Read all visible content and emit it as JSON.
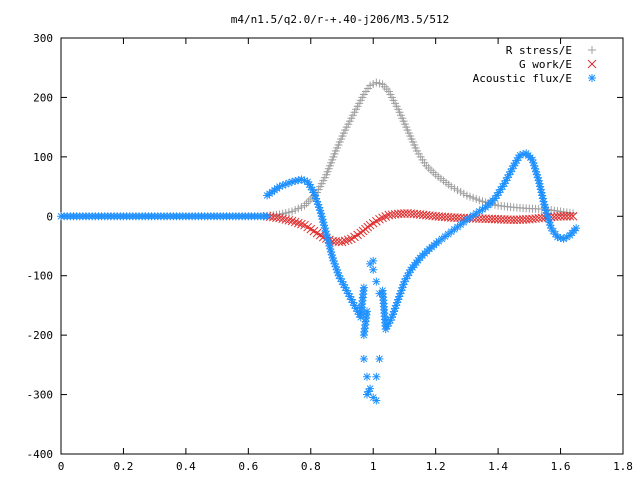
{
  "chart_data": {
    "type": "scatter",
    "title": "m4/n1.5/q2.0/r-+.40-j206/M3.5/512",
    "xlabel": "",
    "ylabel": "",
    "xlim": [
      0,
      1.8
    ],
    "ylim": [
      -400,
      300
    ],
    "xticks": [
      "0",
      "0.2",
      "0.4",
      "0.6",
      "0.8",
      "1",
      "1.2",
      "1.4",
      "1.6",
      "1.8"
    ],
    "yticks": [
      "300",
      "200",
      "100",
      "0",
      "-100",
      "-200",
      "-300",
      "-400"
    ],
    "grid": false,
    "legend_position": "top-right",
    "series": [
      {
        "name": "R stress/E",
        "marker": "+",
        "color": "#a0a0a0",
        "points": [
          [
            0.66,
            1
          ],
          [
            0.7,
            3
          ],
          [
            0.74,
            8
          ],
          [
            0.78,
            18
          ],
          [
            0.82,
            40
          ],
          [
            0.85,
            70
          ],
          [
            0.88,
            110
          ],
          [
            0.91,
            145
          ],
          [
            0.94,
            175
          ],
          [
            0.97,
            205
          ],
          [
            0.99,
            220
          ],
          [
            1.01,
            225
          ],
          [
            1.03,
            222
          ],
          [
            1.05,
            210
          ],
          [
            1.08,
            180
          ],
          [
            1.11,
            145
          ],
          [
            1.14,
            110
          ],
          [
            1.17,
            85
          ],
          [
            1.2,
            70
          ],
          [
            1.25,
            50
          ],
          [
            1.3,
            35
          ],
          [
            1.35,
            25
          ],
          [
            1.4,
            18
          ],
          [
            1.45,
            15
          ],
          [
            1.5,
            13
          ],
          [
            1.55,
            12
          ],
          [
            1.6,
            8
          ],
          [
            1.64,
            5
          ]
        ]
      },
      {
        "name": "G work/E",
        "marker": "x",
        "color": "#e03030",
        "points": [
          [
            0.66,
            0
          ],
          [
            0.7,
            -3
          ],
          [
            0.74,
            -8
          ],
          [
            0.78,
            -15
          ],
          [
            0.81,
            -25
          ],
          [
            0.84,
            -35
          ],
          [
            0.87,
            -42
          ],
          [
            0.9,
            -43
          ],
          [
            0.93,
            -38
          ],
          [
            0.96,
            -28
          ],
          [
            0.99,
            -15
          ],
          [
            1.02,
            -5
          ],
          [
            1.05,
            2
          ],
          [
            1.08,
            4
          ],
          [
            1.11,
            5
          ],
          [
            1.15,
            3
          ],
          [
            1.2,
            0
          ],
          [
            1.25,
            -2
          ],
          [
            1.3,
            -3
          ],
          [
            1.35,
            -4
          ],
          [
            1.4,
            -5
          ],
          [
            1.45,
            -6
          ],
          [
            1.5,
            -5
          ],
          [
            1.55,
            -2
          ],
          [
            1.6,
            0
          ],
          [
            1.64,
            0
          ]
        ]
      },
      {
        "name": "Acoustic flux/E",
        "marker": "*",
        "color": "#1e90ff",
        "points": [
          [
            0.0,
            0
          ],
          [
            0.05,
            0
          ],
          [
            0.1,
            0
          ],
          [
            0.15,
            0
          ],
          [
            0.2,
            0
          ],
          [
            0.25,
            0
          ],
          [
            0.3,
            0
          ],
          [
            0.35,
            0
          ],
          [
            0.4,
            0
          ],
          [
            0.45,
            0
          ],
          [
            0.5,
            0
          ],
          [
            0.55,
            0
          ],
          [
            0.6,
            0
          ],
          [
            0.64,
            0
          ],
          [
            0.66,
            0
          ],
          [
            0.66,
            35
          ],
          [
            0.7,
            50
          ],
          [
            0.74,
            58
          ],
          [
            0.77,
            62
          ],
          [
            0.79,
            58
          ],
          [
            0.81,
            40
          ],
          [
            0.83,
            10
          ],
          [
            0.85,
            -30
          ],
          [
            0.87,
            -70
          ],
          [
            0.89,
            -100
          ],
          [
            0.91,
            -120
          ],
          [
            0.93,
            -140
          ],
          [
            0.95,
            -160
          ],
          [
            0.96,
            -170
          ],
          [
            0.97,
            -120
          ],
          [
            0.97,
            -240
          ],
          [
            0.97,
            -200
          ],
          [
            0.98,
            -160
          ],
          [
            0.98,
            -270
          ],
          [
            0.98,
            -300
          ],
          [
            0.99,
            -290
          ],
          [
            0.99,
            -80
          ],
          [
            1.0,
            -75
          ],
          [
            1.0,
            -90
          ],
          [
            1.0,
            -305
          ],
          [
            1.01,
            -110
          ],
          [
            1.01,
            -270
          ],
          [
            1.01,
            -310
          ],
          [
            1.02,
            -130
          ],
          [
            1.02,
            -240
          ],
          [
            1.03,
            -125
          ],
          [
            1.04,
            -190
          ],
          [
            1.06,
            -170
          ],
          [
            1.08,
            -140
          ],
          [
            1.1,
            -110
          ],
          [
            1.12,
            -90
          ],
          [
            1.15,
            -70
          ],
          [
            1.18,
            -55
          ],
          [
            1.21,
            -42
          ],
          [
            1.24,
            -30
          ],
          [
            1.27,
            -18
          ],
          [
            1.3,
            -6
          ],
          [
            1.33,
            5
          ],
          [
            1.36,
            15
          ],
          [
            1.39,
            30
          ],
          [
            1.42,
            55
          ],
          [
            1.45,
            85
          ],
          [
            1.47,
            103
          ],
          [
            1.49,
            106
          ],
          [
            1.51,
            95
          ],
          [
            1.53,
            60
          ],
          [
            1.55,
            15
          ],
          [
            1.57,
            -20
          ],
          [
            1.59,
            -35
          ],
          [
            1.61,
            -38
          ],
          [
            1.63,
            -32
          ],
          [
            1.65,
            -20
          ]
        ]
      }
    ]
  }
}
